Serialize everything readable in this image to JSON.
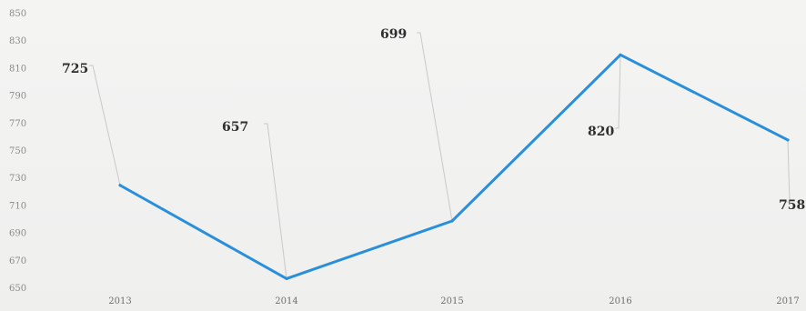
{
  "chart_data": {
    "type": "line",
    "title": "",
    "xlabel": "",
    "ylabel": "",
    "x": [
      "2013",
      "2014",
      "2015",
      "2016",
      "2017"
    ],
    "series": [
      {
        "values": [
          725,
          657,
          699,
          820,
          758
        ],
        "data_labels": [
          "725",
          "657",
          "699",
          "820",
          "758"
        ],
        "color": "#2a8fdb"
      }
    ],
    "yticks": [
      "650",
      "670",
      "690",
      "710",
      "730",
      "750",
      "770",
      "790",
      "810",
      "830",
      "850"
    ],
    "ylim": [
      650,
      850
    ],
    "grid": false,
    "legend": "none"
  }
}
